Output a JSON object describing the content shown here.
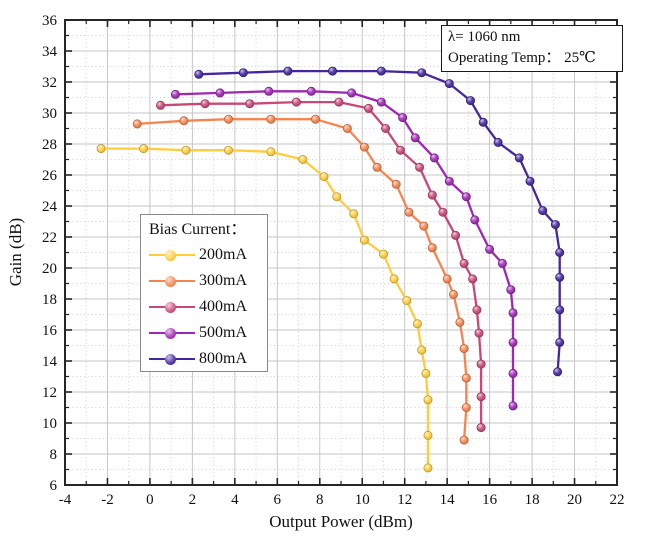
{
  "figure": {
    "annotation": {
      "line1": "λ= 1060 nm",
      "line2": "Operating Temp： 25℃"
    },
    "legend": {
      "title": "Bias Current："
    }
  },
  "chart_data": {
    "type": "line",
    "title": "",
    "xlabel": "Output Power (dBm)",
    "ylabel": "Gain (dB)",
    "xlim": [
      -4,
      22
    ],
    "ylim": [
      6,
      36
    ],
    "xticks": [
      -4,
      -2,
      0,
      2,
      4,
      6,
      8,
      10,
      12,
      14,
      16,
      18,
      20,
      22
    ],
    "yticks": [
      6,
      8,
      10,
      12,
      14,
      16,
      18,
      20,
      22,
      24,
      26,
      28,
      30,
      32,
      34,
      36
    ],
    "grid": true,
    "legend_position": "center-left",
    "marker": "circle",
    "series": [
      {
        "name": "200mA",
        "color": "#FFCD3C",
        "points": [
          [
            -2.3,
            27.7
          ],
          [
            -0.3,
            27.7
          ],
          [
            1.7,
            27.6
          ],
          [
            3.7,
            27.6
          ],
          [
            5.7,
            27.5
          ],
          [
            7.2,
            27.0
          ],
          [
            8.2,
            25.9
          ],
          [
            8.8,
            24.6
          ],
          [
            9.6,
            23.5
          ],
          [
            10.1,
            21.8
          ],
          [
            11.0,
            20.9
          ],
          [
            11.5,
            19.3
          ],
          [
            12.1,
            17.9
          ],
          [
            12.6,
            16.4
          ],
          [
            12.8,
            14.7
          ],
          [
            13.0,
            13.2
          ],
          [
            13.1,
            11.5
          ],
          [
            13.1,
            9.2
          ],
          [
            13.1,
            7.1
          ]
        ]
      },
      {
        "name": "300mA",
        "color": "#F5854F",
        "points": [
          [
            -0.6,
            29.3
          ],
          [
            1.6,
            29.5
          ],
          [
            3.7,
            29.6
          ],
          [
            5.7,
            29.6
          ],
          [
            7.8,
            29.6
          ],
          [
            9.3,
            29.0
          ],
          [
            10.1,
            27.8
          ],
          [
            10.7,
            26.5
          ],
          [
            11.6,
            25.4
          ],
          [
            12.2,
            23.6
          ],
          [
            12.9,
            22.7
          ],
          [
            13.3,
            21.3
          ],
          [
            14.0,
            19.3
          ],
          [
            14.3,
            18.3
          ],
          [
            14.6,
            16.5
          ],
          [
            14.8,
            14.8
          ],
          [
            14.9,
            12.9
          ],
          [
            14.9,
            11.0
          ],
          [
            14.8,
            8.9
          ]
        ]
      },
      {
        "name": "400mA",
        "color": "#C84878",
        "points": [
          [
            0.5,
            30.5
          ],
          [
            2.6,
            30.6
          ],
          [
            4.7,
            30.6
          ],
          [
            6.9,
            30.7
          ],
          [
            8.9,
            30.7
          ],
          [
            10.3,
            30.3
          ],
          [
            11.1,
            29.0
          ],
          [
            11.8,
            27.6
          ],
          [
            12.7,
            26.5
          ],
          [
            13.3,
            24.7
          ],
          [
            13.8,
            23.6
          ],
          [
            14.4,
            22.1
          ],
          [
            14.8,
            20.3
          ],
          [
            15.2,
            19.3
          ],
          [
            15.4,
            17.3
          ],
          [
            15.5,
            15.8
          ],
          [
            15.6,
            13.8
          ],
          [
            15.6,
            11.7
          ],
          [
            15.6,
            9.7
          ]
        ]
      },
      {
        "name": "500mA",
        "color": "#9E27B5",
        "points": [
          [
            1.2,
            31.2
          ],
          [
            3.3,
            31.3
          ],
          [
            5.6,
            31.4
          ],
          [
            7.6,
            31.4
          ],
          [
            9.5,
            31.3
          ],
          [
            10.9,
            30.7
          ],
          [
            11.9,
            29.7
          ],
          [
            12.5,
            28.4
          ],
          [
            13.4,
            27.1
          ],
          [
            14.1,
            25.6
          ],
          [
            14.9,
            24.6
          ],
          [
            15.3,
            23.1
          ],
          [
            16.0,
            21.2
          ],
          [
            16.6,
            20.3
          ],
          [
            17.0,
            18.6
          ],
          [
            17.1,
            17.1
          ],
          [
            17.1,
            15.2
          ],
          [
            17.1,
            13.2
          ],
          [
            17.1,
            11.1
          ]
        ]
      },
      {
        "name": "800mA",
        "color": "#44279E",
        "points": [
          [
            2.3,
            32.5
          ],
          [
            4.4,
            32.6
          ],
          [
            6.5,
            32.7
          ],
          [
            8.6,
            32.7
          ],
          [
            10.9,
            32.7
          ],
          [
            12.8,
            32.6
          ],
          [
            14.1,
            31.9
          ],
          [
            15.1,
            30.8
          ],
          [
            15.7,
            29.4
          ],
          [
            16.4,
            28.1
          ],
          [
            17.4,
            27.1
          ],
          [
            17.9,
            25.6
          ],
          [
            18.5,
            23.7
          ],
          [
            19.1,
            22.8
          ],
          [
            19.3,
            21.0
          ],
          [
            19.3,
            19.4
          ],
          [
            19.3,
            17.3
          ],
          [
            19.3,
            15.2
          ],
          [
            19.2,
            13.3
          ]
        ]
      }
    ]
  }
}
